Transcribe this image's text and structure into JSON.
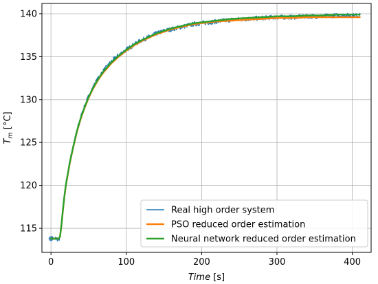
{
  "chart_data": {
    "type": "line",
    "xlabel": "Time [s]",
    "ylabel": "T_m [°C]",
    "xlim": [
      -12,
      425
    ],
    "ylim": [
      112.2,
      141.2
    ],
    "xticks": [
      0,
      100,
      200,
      300,
      400
    ],
    "yticks": [
      115,
      120,
      125,
      130,
      135,
      140
    ],
    "grid": true,
    "legend_position": "lower-right",
    "series": [
      {
        "name": "Real high order system",
        "color": "#1f77b4",
        "linewidth": 1.2,
        "noisy": true,
        "x": [
          0,
          2,
          4,
          6,
          8,
          10,
          12,
          14,
          16,
          18,
          20,
          25,
          30,
          35,
          40,
          45,
          50,
          55,
          60,
          65,
          70,
          80,
          90,
          100,
          110,
          120,
          130,
          140,
          150,
          160,
          170,
          180,
          190,
          200,
          210,
          220,
          240,
          260,
          280,
          300,
          320,
          340,
          360,
          380,
          400,
          410
        ],
        "y": [
          113.8,
          113.9,
          113.7,
          113.8,
          113.8,
          113.6,
          114.0,
          115.5,
          117.4,
          119.0,
          120.3,
          122.8,
          124.8,
          126.6,
          128.1,
          129.3,
          130.4,
          131.3,
          132.1,
          132.8,
          133.4,
          134.4,
          135.2,
          135.8,
          136.4,
          136.9,
          137.3,
          137.7,
          138.0,
          138.2,
          138.4,
          138.6,
          138.8,
          138.9,
          139.0,
          139.1,
          139.3,
          139.4,
          139.5,
          139.6,
          139.6,
          139.7,
          139.7,
          139.8,
          139.8,
          139.8
        ]
      },
      {
        "name": "PSO reduced order estimation",
        "color": "#ff7f0e",
        "linewidth": 2.4,
        "noisy": false,
        "x": [
          0,
          2,
          4,
          6,
          8,
          10,
          12,
          14,
          16,
          18,
          20,
          25,
          30,
          35,
          40,
          45,
          50,
          55,
          60,
          65,
          70,
          80,
          90,
          100,
          110,
          120,
          130,
          140,
          150,
          160,
          170,
          180,
          190,
          200,
          210,
          220,
          240,
          260,
          280,
          300,
          320,
          340,
          360,
          380,
          400,
          410
        ],
        "y": [
          113.8,
          113.8,
          113.8,
          113.8,
          113.8,
          113.8,
          114.0,
          115.4,
          117.2,
          118.8,
          120.1,
          122.6,
          124.6,
          126.4,
          127.9,
          129.1,
          130.2,
          131.1,
          131.9,
          132.6,
          133.2,
          134.2,
          135.0,
          135.7,
          136.3,
          136.8,
          137.2,
          137.6,
          137.9,
          138.2,
          138.4,
          138.6,
          138.8,
          138.9,
          139.0,
          139.1,
          139.2,
          139.3,
          139.4,
          139.5,
          139.5,
          139.6,
          139.6,
          139.6,
          139.6,
          139.6
        ]
      },
      {
        "name": "Neural network reduced order estimation",
        "color": "#2ca02c",
        "linewidth": 2.4,
        "noisy": false,
        "x": [
          0,
          2,
          4,
          6,
          8,
          10,
          12,
          14,
          16,
          18,
          20,
          25,
          30,
          35,
          40,
          45,
          50,
          55,
          60,
          65,
          70,
          80,
          90,
          100,
          110,
          120,
          130,
          140,
          150,
          160,
          170,
          180,
          190,
          200,
          210,
          220,
          240,
          260,
          280,
          300,
          320,
          340,
          360,
          380,
          400,
          410
        ],
        "y": [
          113.8,
          113.8,
          113.8,
          113.8,
          113.8,
          113.8,
          114.0,
          115.5,
          117.3,
          118.9,
          120.2,
          122.7,
          124.7,
          126.5,
          128.0,
          129.2,
          130.3,
          131.2,
          132.0,
          132.7,
          133.3,
          134.3,
          135.1,
          135.8,
          136.4,
          136.9,
          137.3,
          137.7,
          138.0,
          138.3,
          138.5,
          138.7,
          138.9,
          139.0,
          139.1,
          139.2,
          139.4,
          139.5,
          139.6,
          139.7,
          139.7,
          139.8,
          139.8,
          139.9,
          139.9,
          139.9
        ]
      }
    ]
  }
}
